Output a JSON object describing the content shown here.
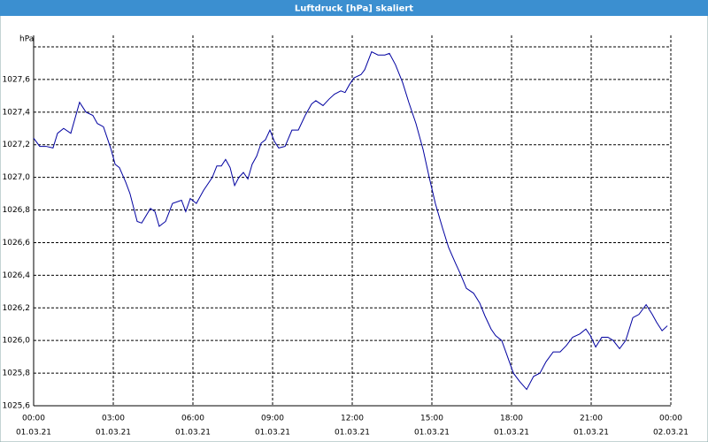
{
  "chart_data": {
    "type": "line",
    "title": "Luftdruck [hPa] skaliert",
    "y_unit": "hPa",
    "xlim": [
      0,
      24
    ],
    "ylim": [
      1025.6,
      1027.8
    ],
    "grid": true,
    "xticks": [
      {
        "value": 0,
        "label": "00:00",
        "date": "01.03.21"
      },
      {
        "value": 3,
        "label": "03:00",
        "date": "01.03.21"
      },
      {
        "value": 6,
        "label": "06:00",
        "date": "01.03.21"
      },
      {
        "value": 9,
        "label": "09:00",
        "date": "01.03.21"
      },
      {
        "value": 12,
        "label": "12:00",
        "date": "01.03.21"
      },
      {
        "value": 15,
        "label": "15:00",
        "date": "01.03.21"
      },
      {
        "value": 18,
        "label": "18:00",
        "date": "01.03.21"
      },
      {
        "value": 21,
        "label": "21:00",
        "date": "01.03.21"
      },
      {
        "value": 24,
        "label": "00:00",
        "date": "02.03.21"
      }
    ],
    "yticks": [
      {
        "value": 1025.6,
        "label": "1025,6"
      },
      {
        "value": 1025.8,
        "label": "1025,8"
      },
      {
        "value": 1026.0,
        "label": "1026,0"
      },
      {
        "value": 1026.2,
        "label": "1026,2"
      },
      {
        "value": 1026.4,
        "label": "1026,4"
      },
      {
        "value": 1026.6,
        "label": "1026,6"
      },
      {
        "value": 1026.8,
        "label": "1026,8"
      },
      {
        "value": 1027.0,
        "label": "1027,0"
      },
      {
        "value": 1027.2,
        "label": "1027,2"
      },
      {
        "value": 1027.4,
        "label": "1027,4"
      },
      {
        "value": 1027.6,
        "label": "1027,6"
      }
    ],
    "x": [
      0,
      0.23,
      0.47,
      0.73,
      0.9,
      1.13,
      1.4,
      1.73,
      1.97,
      2.23,
      2.4,
      2.63,
      2.9,
      3.07,
      3.23,
      3.47,
      3.63,
      3.9,
      4.07,
      4.4,
      4.57,
      4.73,
      4.97,
      5.23,
      5.57,
      5.73,
      5.9,
      6.13,
      6.4,
      6.73,
      6.9,
      7.07,
      7.23,
      7.4,
      7.57,
      7.73,
      7.9,
      8.07,
      8.23,
      8.4,
      8.57,
      8.73,
      8.9,
      9.07,
      9.23,
      9.47,
      9.73,
      9.97,
      10.23,
      10.47,
      10.63,
      10.9,
      11.13,
      11.33,
      11.57,
      11.73,
      11.9,
      12.07,
      12.33,
      12.47,
      12.73,
      12.97,
      13.23,
      13.4,
      13.63,
      13.9,
      14.13,
      14.4,
      14.67,
      14.9,
      15.13,
      15.4,
      15.63,
      15.9,
      16.07,
      16.3,
      16.57,
      16.8,
      17,
      17.23,
      17.4,
      17.63,
      17.83,
      18.07,
      18.3,
      18.57,
      18.83,
      19.07,
      19.3,
      19.57,
      19.83,
      20.07,
      20.3,
      20.57,
      20.8,
      20.97,
      21.17,
      21.4,
      21.63,
      21.83,
      22.07,
      22.3,
      22.57,
      22.8,
      23.07,
      23.3,
      23.47,
      23.67,
      23.87
    ],
    "series": [
      {
        "color": "#0000a0",
        "values": [
          1027.24,
          1027.19,
          1027.19,
          1027.18,
          1027.27,
          1027.3,
          1027.27,
          1027.46,
          1027.4,
          1027.38,
          1027.33,
          1027.31,
          1027.18,
          1027.08,
          1027.06,
          1026.97,
          1026.9,
          1026.73,
          1026.72,
          1026.81,
          1026.79,
          1026.7,
          1026.73,
          1026.84,
          1026.86,
          1026.79,
          1026.87,
          1026.84,
          1026.92,
          1027.0,
          1027.07,
          1027.07,
          1027.11,
          1027.06,
          1026.95,
          1027.0,
          1027.03,
          1026.99,
          1027.08,
          1027.13,
          1027.21,
          1027.23,
          1027.29,
          1027.22,
          1027.18,
          1027.19,
          1027.29,
          1027.29,
          1027.38,
          1027.45,
          1027.47,
          1027.44,
          1027.48,
          1027.51,
          1027.53,
          1027.52,
          1027.57,
          1027.61,
          1027.63,
          1027.66,
          1027.77,
          1027.75,
          1027.75,
          1027.76,
          1027.69,
          1027.58,
          1027.46,
          1027.33,
          1027.17,
          1027.0,
          1026.84,
          1026.69,
          1026.57,
          1026.47,
          1026.41,
          1026.32,
          1026.29,
          1026.23,
          1026.15,
          1026.07,
          1026.03,
          1026.0,
          1025.91,
          1025.8,
          1025.75,
          1025.7,
          1025.78,
          1025.8,
          1025.87,
          1025.93,
          1025.93,
          1025.97,
          1026.02,
          1026.04,
          1026.07,
          1026.03,
          1025.96,
          1026.02,
          1026.02,
          1026.0,
          1025.95,
          1026.0,
          1026.14,
          1026.16,
          1026.22,
          1026.16,
          1026.11,
          1026.06,
          1026.09
        ]
      }
    ]
  }
}
